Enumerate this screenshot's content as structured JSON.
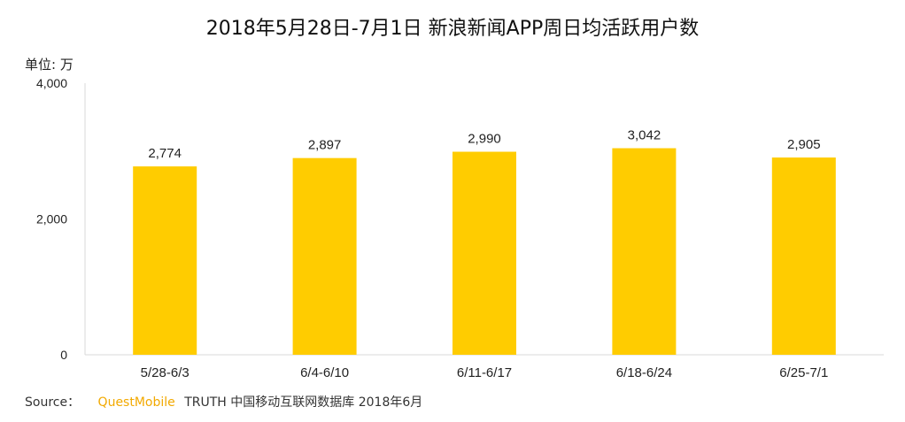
{
  "chart_data": {
    "type": "bar",
    "title": "2018年5月28日-7月1日 新浪新闻APP周日均活跃用户数",
    "unit_label": "单位: 万",
    "categories": [
      "5/28-6/3",
      "6/4-6/10",
      "6/11-6/17",
      "6/18-6/24",
      "6/25-7/1"
    ],
    "values": [
      2774,
      2897,
      2990,
      3042,
      2905
    ],
    "data_labels": [
      "2,774",
      "2,897",
      "2,990",
      "3,042",
      "2,905"
    ],
    "yticks": [
      0,
      2000,
      4000
    ],
    "ytick_labels": [
      "0",
      "2,000",
      "4,000"
    ],
    "ylim": [
      0,
      4000
    ],
    "bar_color": "#FFCC00",
    "grid": false
  },
  "source": {
    "label": "Source：",
    "brand": "QuestMobile",
    "desc": "TRUTH 中国移动互联网数据库 2018年6月",
    "brand_color": "#F2A900"
  }
}
